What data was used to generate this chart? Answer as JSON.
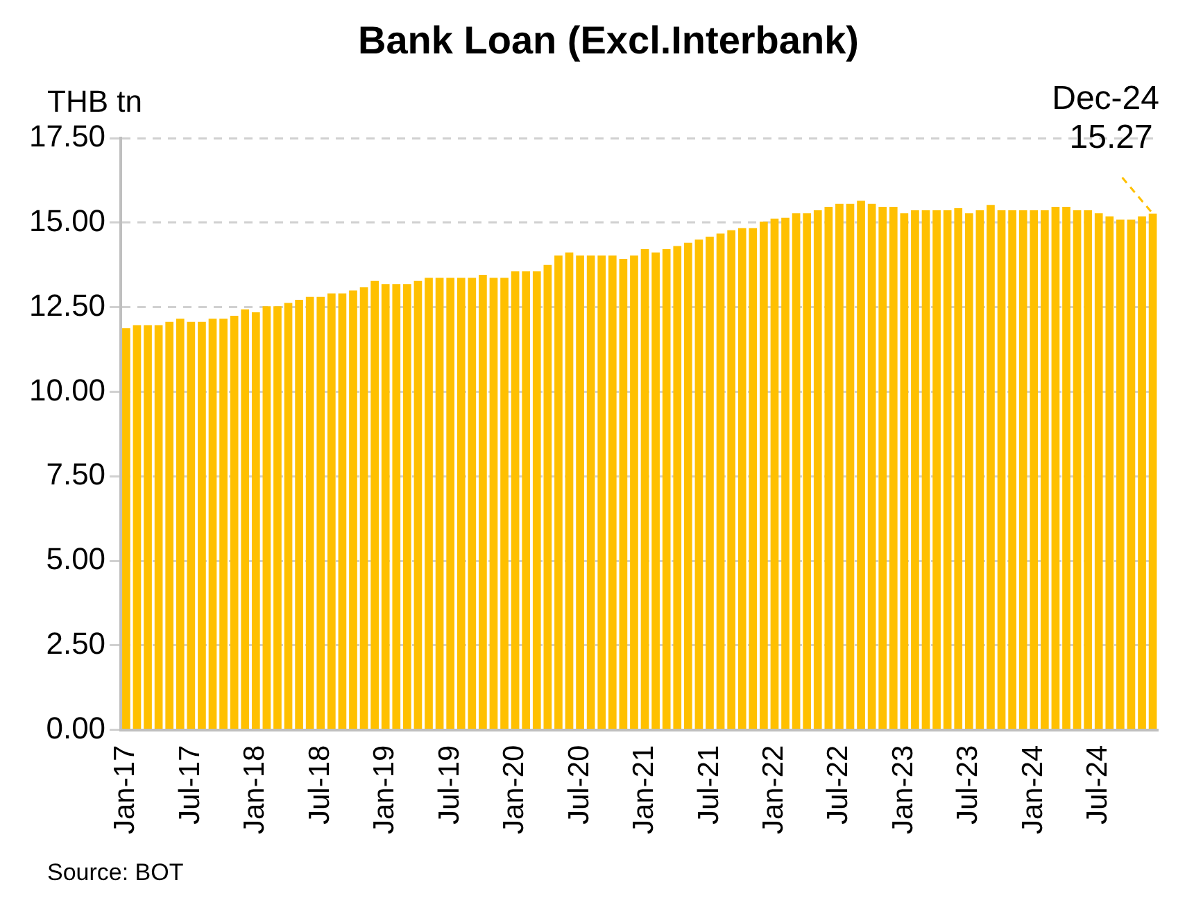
{
  "chart_data": {
    "type": "bar",
    "title": "Bank Loan (Excl.Interbank)",
    "ylabel": "THB tn",
    "categories": [
      "Jan-17",
      null,
      null,
      null,
      null,
      null,
      "Jul-17",
      null,
      null,
      null,
      null,
      null,
      "Jan-18",
      null,
      null,
      null,
      null,
      null,
      "Jul-18",
      null,
      null,
      null,
      null,
      null,
      "Jan-19",
      null,
      null,
      null,
      null,
      null,
      "Jul-19",
      null,
      null,
      null,
      null,
      null,
      "Jan-20",
      null,
      null,
      null,
      null,
      null,
      "Jul-20",
      null,
      null,
      null,
      null,
      null,
      "Jan-21",
      null,
      null,
      null,
      null,
      null,
      "Jul-21",
      null,
      null,
      null,
      null,
      null,
      "Jan-22",
      null,
      null,
      null,
      null,
      null,
      "Jul-22",
      null,
      null,
      null,
      null,
      null,
      "Jan-23",
      null,
      null,
      null,
      null,
      null,
      "Jul-23",
      null,
      null,
      null,
      null,
      null,
      "Jan-24",
      null,
      null,
      null,
      null,
      null,
      "Jul-24",
      null,
      null,
      null,
      null,
      null
    ],
    "values": [
      11.88,
      11.97,
      11.97,
      11.97,
      12.07,
      12.16,
      12.07,
      12.07,
      12.16,
      12.16,
      12.25,
      12.44,
      12.35,
      12.53,
      12.53,
      12.63,
      12.72,
      12.81,
      12.81,
      12.91,
      12.91,
      13.0,
      13.09,
      13.28,
      13.19,
      13.19,
      13.19,
      13.28,
      13.37,
      13.37,
      13.37,
      13.37,
      13.37,
      13.46,
      13.37,
      13.37,
      13.56,
      13.56,
      13.56,
      13.75,
      14.03,
      14.12,
      14.03,
      14.03,
      14.03,
      14.03,
      13.93,
      14.03,
      14.22,
      14.12,
      14.22,
      14.31,
      14.41,
      14.5,
      14.59,
      14.68,
      14.78,
      14.84,
      14.84,
      15.03,
      15.12,
      15.15,
      15.28,
      15.28,
      15.37,
      15.47,
      15.56,
      15.56,
      15.65,
      15.56,
      15.47,
      15.47,
      15.28,
      15.37,
      15.37,
      15.37,
      15.37,
      15.43,
      15.28,
      15.37,
      15.53,
      15.37,
      15.37,
      15.37,
      15.37,
      15.37,
      15.47,
      15.47,
      15.37,
      15.37,
      15.28,
      15.19,
      15.09,
      15.09,
      15.19,
      15.27
    ],
    "value_labels": [
      null,
      null,
      null,
      null,
      null,
      null,
      null,
      null,
      null,
      null,
      null,
      null,
      null,
      null,
      null,
      null,
      null,
      null,
      null,
      null,
      null,
      null,
      null,
      null,
      null,
      null,
      null,
      null,
      null,
      null,
      null,
      null,
      null,
      null,
      null,
      null,
      null,
      null,
      null,
      null,
      null,
      null,
      null,
      null,
      null,
      null,
      null,
      null,
      null,
      null,
      null,
      null,
      null,
      null,
      null,
      null,
      null,
      null,
      null,
      null,
      null,
      null,
      null,
      null,
      null,
      null,
      null,
      null,
      null,
      null,
      null,
      null,
      null,
      null,
      null,
      null,
      null,
      null,
      null,
      null,
      null,
      null,
      null,
      null,
      null,
      null,
      null,
      null,
      null,
      null,
      null,
      null,
      null,
      null,
      null,
      "15.27"
    ],
    "color": "#ffc000",
    "ylim": [
      0,
      17.5
    ],
    "yticks": [
      {
        "value": 0,
        "label": "0.00"
      },
      {
        "value": 2.5,
        "label": "2.50"
      },
      {
        "value": 5,
        "label": "5.00"
      },
      {
        "value": 7.5,
        "label": "7.50"
      },
      {
        "value": 10,
        "label": "10.00"
      },
      {
        "value": 12.5,
        "label": "12.50"
      },
      {
        "value": 15,
        "label": "15.00"
      },
      {
        "value": 17.5,
        "label": "17.50"
      }
    ],
    "grid": "y",
    "legend": false,
    "annotations": [
      {
        "text": "Dec-24",
        "y": 15.27
      },
      "Source: BOT"
    ]
  }
}
